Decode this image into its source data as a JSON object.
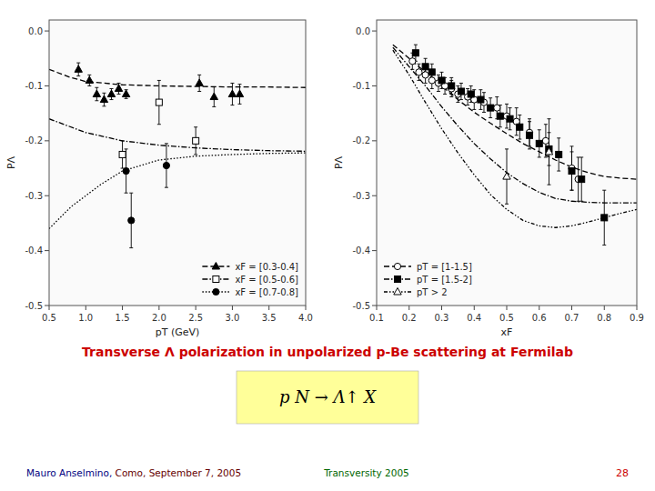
{
  "title": {
    "text": "Transverse Λ polarization in unpolarized p-Be scattering at Fermilab",
    "color": "#cc0000"
  },
  "formula": {
    "text": "p N → Λ↑ X",
    "color": "#ffff99"
  },
  "footer": [
    {
      "text": "Mauro Anselmino,",
      "color": "#000080"
    },
    {
      "text": " Como, September 7, 2005",
      "color": "#660000"
    },
    {
      "text": "Transversity 2005",
      "color": "#006600"
    },
    {
      "text": "28",
      "color": "#cc0000"
    }
  ],
  "chart_data": [
    {
      "type": "scatter",
      "xlabel": "pT (GeV)",
      "ylabel": "PΛ",
      "xlim": [
        0.5,
        4.0
      ],
      "ylim": [
        -0.5,
        0.02
      ],
      "xticks": [
        0.5,
        {
          "value": 1,
          "label": "1.0"
        },
        1.5,
        {
          "value": 2,
          "label": "2.0"
        },
        2.5,
        {
          "value": 3,
          "label": "3.0"
        },
        3.5,
        {
          "value": 4,
          "label": "4.0"
        }
      ],
      "yticks": [
        {
          "value": 0,
          "label": "0.0"
        },
        -0.1,
        -0.2,
        -0.3,
        -0.4,
        -0.5
      ],
      "grid": false,
      "legend": "lower right",
      "series": [
        {
          "name": "xF = [0.3-0.4]",
          "color": "#000000",
          "marker": "triangle-filled",
          "line_style": "dashed",
          "x": [
            0.9,
            1.05,
            1.15,
            1.25,
            1.35,
            1.45,
            1.55,
            2.55,
            2.75,
            3.0,
            3.1
          ],
          "values": [
            -0.07,
            -0.09,
            -0.115,
            -0.125,
            -0.115,
            -0.105,
            -0.115,
            -0.095,
            -0.12,
            -0.115,
            -0.115
          ],
          "yerr": [
            0.012,
            0.01,
            0.012,
            0.012,
            0.01,
            0.01,
            0.008,
            0.015,
            0.018,
            0.02,
            0.018
          ],
          "curve": {
            "x": [
              0.5,
              0.8,
              1.0,
              1.5,
              2.0,
              2.5,
              3.0,
              3.5,
              4.0
            ],
            "values": [
              -0.07,
              -0.085,
              -0.092,
              -0.098,
              -0.1,
              -0.101,
              -0.102,
              -0.102,
              -0.103
            ]
          }
        },
        {
          "name": "xF = [0.5-0.6]",
          "color": "#000000",
          "marker": "square-open",
          "line_style": "dashdot",
          "x": [
            1.5,
            2.0,
            2.5
          ],
          "values": [
            -0.225,
            -0.13,
            -0.2
          ],
          "yerr": [
            0.025,
            0.04,
            0.025
          ],
          "curve": {
            "x": [
              0.5,
              1.0,
              1.5,
              2.0,
              2.5,
              3.0,
              3.5,
              4.0
            ],
            "values": [
              -0.16,
              -0.185,
              -0.2,
              -0.208,
              -0.213,
              -0.216,
              -0.218,
              -0.219
            ]
          }
        },
        {
          "name": "xF = [0.7-0.8]",
          "color": "#000000",
          "marker": "circle-filled",
          "line_style": "dotted",
          "x": [
            1.55,
            1.62,
            2.1
          ],
          "values": [
            -0.255,
            -0.345,
            -0.245
          ],
          "yerr": [
            0.04,
            0.05,
            0.04
          ],
          "curve": {
            "x": [
              0.5,
              0.8,
              1.0,
              1.2,
              1.5,
              2.0,
              2.5,
              3.0,
              3.5,
              4.0
            ],
            "values": [
              -0.36,
              -0.32,
              -0.3,
              -0.28,
              -0.255,
              -0.235,
              -0.228,
              -0.225,
              -0.223,
              -0.222
            ]
          }
        }
      ]
    },
    {
      "type": "scatter",
      "xlabel": "xF",
      "ylabel": "PΛ",
      "xlim": [
        0.1,
        0.9
      ],
      "ylim": [
        -0.5,
        0.02
      ],
      "xticks": [
        0.1,
        0.2,
        0.3,
        0.4,
        0.5,
        0.6,
        0.7,
        0.8,
        0.9
      ],
      "yticks": [
        {
          "value": 0,
          "label": "0.0"
        },
        -0.1,
        -0.2,
        -0.3,
        -0.4,
        -0.5
      ],
      "grid": false,
      "legend": "lower left",
      "series": [
        {
          "name": "pT = [1-1.5]",
          "color": "#000000",
          "marker": "circle-open",
          "line_style": "dashed",
          "x": [
            0.21,
            0.23,
            0.25,
            0.27,
            0.29,
            0.31,
            0.33,
            0.35,
            0.38,
            0.4,
            0.43,
            0.47,
            0.5,
            0.53,
            0.57,
            0.62,
            0.7,
            0.72
          ],
          "values": [
            -0.055,
            -0.075,
            -0.08,
            -0.09,
            -0.095,
            -0.1,
            -0.105,
            -0.115,
            -0.12,
            -0.125,
            -0.13,
            -0.14,
            -0.155,
            -0.165,
            -0.185,
            -0.2,
            -0.25,
            -0.27
          ],
          "yerr": [
            0.015,
            0.015,
            0.015,
            0.015,
            0.015,
            0.015,
            0.015,
            0.015,
            0.015,
            0.018,
            0.018,
            0.02,
            0.022,
            0.025,
            0.025,
            0.03,
            0.04,
            0.04
          ],
          "curve": {
            "x": [
              0.15,
              0.2,
              0.25,
              0.3,
              0.35,
              0.4,
              0.45,
              0.5,
              0.55,
              0.6,
              0.65,
              0.7,
              0.75,
              0.8,
              0.85,
              0.9
            ],
            "values": [
              -0.025,
              -0.05,
              -0.075,
              -0.1,
              -0.125,
              -0.148,
              -0.168,
              -0.187,
              -0.205,
              -0.22,
              -0.235,
              -0.248,
              -0.258,
              -0.265,
              -0.268,
              -0.27
            ]
          }
        },
        {
          "name": "pT = [1.5-2]",
          "color": "#000000",
          "marker": "square-filled",
          "line_style": "dashdot",
          "x": [
            0.22,
            0.25,
            0.27,
            0.3,
            0.33,
            0.36,
            0.39,
            0.42,
            0.45,
            0.48,
            0.51,
            0.54,
            0.57,
            0.6,
            0.63,
            0.66,
            0.7,
            0.73,
            0.8
          ],
          "values": [
            -0.04,
            -0.065,
            -0.075,
            -0.09,
            -0.1,
            -0.11,
            -0.115,
            -0.125,
            -0.14,
            -0.155,
            -0.16,
            -0.175,
            -0.19,
            -0.205,
            -0.215,
            -0.225,
            -0.255,
            -0.27,
            -0.34
          ],
          "yerr": [
            0.015,
            0.015,
            0.015,
            0.015,
            0.015,
            0.015,
            0.015,
            0.018,
            0.018,
            0.02,
            0.02,
            0.022,
            0.025,
            0.025,
            0.03,
            0.03,
            0.035,
            0.04,
            0.05
          ],
          "curve": {
            "x": [
              0.15,
              0.2,
              0.25,
              0.3,
              0.35,
              0.4,
              0.45,
              0.5,
              0.55,
              0.6,
              0.65,
              0.7,
              0.75,
              0.8,
              0.85,
              0.9
            ],
            "values": [
              -0.03,
              -0.065,
              -0.1,
              -0.138,
              -0.173,
              -0.205,
              -0.233,
              -0.258,
              -0.278,
              -0.294,
              -0.305,
              -0.31,
              -0.312,
              -0.313,
              -0.313,
              -0.313
            ]
          }
        },
        {
          "name": "pT > 2",
          "color": "#000000",
          "marker": "triangle-open",
          "line_style": "dashdotdot",
          "x": [
            0.5,
            0.63
          ],
          "values": [
            -0.265,
            -0.22
          ],
          "yerr": [
            0.05,
            0.06
          ],
          "curve": {
            "x": [
              0.15,
              0.2,
              0.25,
              0.3,
              0.35,
              0.4,
              0.45,
              0.5,
              0.55,
              0.6,
              0.65,
              0.7,
              0.75,
              0.8,
              0.85,
              0.9
            ],
            "values": [
              -0.035,
              -0.08,
              -0.13,
              -0.178,
              -0.222,
              -0.262,
              -0.298,
              -0.325,
              -0.345,
              -0.355,
              -0.358,
              -0.355,
              -0.348,
              -0.34,
              -0.332,
              -0.325
            ]
          }
        }
      ]
    }
  ]
}
